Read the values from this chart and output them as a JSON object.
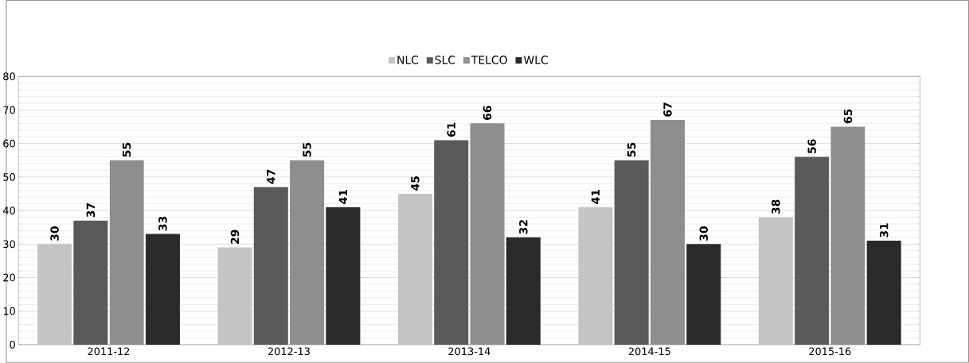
{
  "chart_data": {
    "type": "bar",
    "categories": [
      "2011-12",
      "2012-13",
      "2013-14",
      "2014-15",
      "2015-16"
    ],
    "series": [
      {
        "name": "NLC",
        "color": "#c4c4c4",
        "values": [
          30,
          29,
          45,
          41,
          38
        ]
      },
      {
        "name": "SLC",
        "color": "#5a5a5a",
        "values": [
          37,
          47,
          61,
          55,
          56
        ]
      },
      {
        "name": "TELCO",
        "color": "#8e8e8e",
        "values": [
          55,
          55,
          66,
          67,
          65
        ]
      },
      {
        "name": "WLC",
        "color": "#2a2a2a",
        "values": [
          33,
          41,
          32,
          30,
          31
        ]
      }
    ],
    "ylim": [
      0,
      80
    ],
    "yticks": [
      0,
      10,
      20,
      30,
      40,
      50,
      60,
      70,
      80
    ],
    "grid": "y",
    "legend": "top",
    "data_labels": true
  }
}
